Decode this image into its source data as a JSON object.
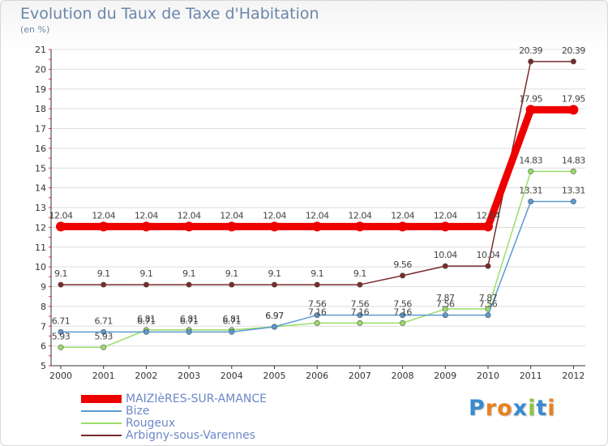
{
  "title": "Evolution du Taux de Taxe d'Habitation",
  "unit": "(en %)",
  "logo": {
    "text": "Proxiti",
    "colors": [
      "#3a8bd0",
      "#e8821e",
      "#e8821e",
      "#3a8bd0",
      "#8fc43a",
      "#3a8bd0",
      "#e8821e"
    ]
  },
  "chart_data": {
    "type": "line",
    "x": [
      "2000",
      "2001",
      "2002",
      "2003",
      "2004",
      "2005",
      "2006",
      "2007",
      "2008",
      "2009",
      "2010",
      "2011",
      "2012"
    ],
    "yticks": [
      "5",
      "6",
      "7",
      "8",
      "9",
      "10",
      "11",
      "12",
      "13",
      "14",
      "15",
      "16",
      "17",
      "18",
      "19",
      "20",
      "21"
    ],
    "ylim": [
      5,
      21
    ],
    "grid": "horizontal",
    "series": [
      {
        "name": "MAIZIèRES-SUR-AMANCE",
        "color": "#ee0000",
        "values": [
          12.04,
          12.04,
          12.04,
          12.04,
          12.04,
          12.04,
          12.04,
          12.04,
          12.04,
          12.04,
          12.04,
          17.95,
          17.95
        ],
        "labels": [
          "12.04",
          "12.04",
          "12.04",
          "12.04",
          "12.04",
          "12.04",
          "12.04",
          "12.04",
          "12.04",
          "12.04",
          "12.04",
          "17.95",
          "17.95"
        ]
      },
      {
        "name": "Bize",
        "color": "#5b9ad0",
        "values": [
          6.71,
          6.71,
          6.71,
          6.71,
          6.71,
          6.97,
          7.56,
          7.56,
          7.56,
          7.56,
          7.56,
          13.31,
          13.31
        ],
        "labels": [
          "6.71",
          "6.71",
          "6.71",
          "6.71",
          "6.71",
          "6.97",
          "7.56",
          "7.56",
          "7.56",
          "7.56",
          "7.56",
          "13.31",
          "13.31"
        ]
      },
      {
        "name": "Rougeux",
        "color": "#99dd66",
        "values": [
          5.93,
          5.93,
          6.81,
          6.81,
          6.81,
          6.97,
          7.16,
          7.16,
          7.16,
          7.87,
          7.87,
          14.83,
          14.83
        ],
        "labels": [
          "5.93",
          "5.93",
          "6.81",
          "6.81",
          "6.81",
          "6.97",
          "7.16",
          "7.16",
          "7.16",
          "7.87",
          "7.87",
          "14.83",
          "14.83"
        ]
      },
      {
        "name": "Arbigny-sous-Varennes",
        "color": "#7a2a2a",
        "values": [
          9.1,
          9.1,
          9.1,
          9.1,
          9.1,
          9.1,
          9.1,
          9.1,
          9.56,
          10.04,
          10.04,
          20.39,
          20.39
        ],
        "labels": [
          "9.1",
          "9.1",
          "9.1",
          "9.1",
          "9.1",
          "9.1",
          "9.1",
          "9.1",
          "9.56",
          "10.04",
          "10.04",
          "20.39",
          "20.39"
        ]
      }
    ]
  }
}
